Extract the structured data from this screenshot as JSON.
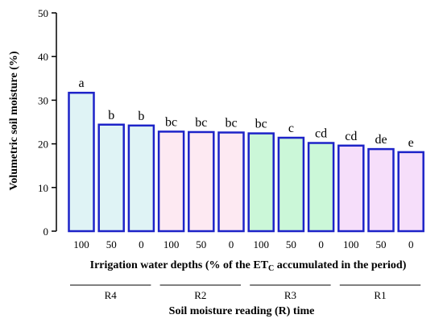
{
  "chart_data": {
    "type": "bar",
    "categories": [
      "100",
      "50",
      "0",
      "100",
      "50",
      "0",
      "100",
      "50",
      "0",
      "100",
      "50",
      "0"
    ],
    "values": [
      31.7,
      24.4,
      24.2,
      22.8,
      22.7,
      22.6,
      22.4,
      21.4,
      20.2,
      19.6,
      18.8,
      18.1
    ],
    "bar_labels": [
      "a",
      "b",
      "b",
      "bc",
      "bc",
      "bc",
      "bc",
      "c",
      "cd",
      "cd",
      "de",
      "e"
    ],
    "groups": [
      {
        "label": "R4",
        "start": 0,
        "end": 2,
        "fill": "#dff3f5"
      },
      {
        "label": "R2",
        "start": 3,
        "end": 5,
        "fill": "#fde9f2"
      },
      {
        "label": "R3",
        "start": 6,
        "end": 8,
        "fill": "#cbf7d8"
      },
      {
        "label": "R1",
        "start": 9,
        "end": 11,
        "fill": "#f6defa"
      }
    ],
    "bar_stroke": "#1d23c8",
    "xlabel_parts": [
      "Irrigation water depths (% of the ET",
      "C",
      " accumulated in the period)"
    ],
    "group_axis_label": "Soil moisture reading (R) time",
    "ylabel": "Volumetric soil moisture (%)",
    "ylim": [
      0,
      50
    ],
    "yticks": [
      0,
      10,
      20,
      30,
      40,
      50
    ],
    "grid": false
  }
}
